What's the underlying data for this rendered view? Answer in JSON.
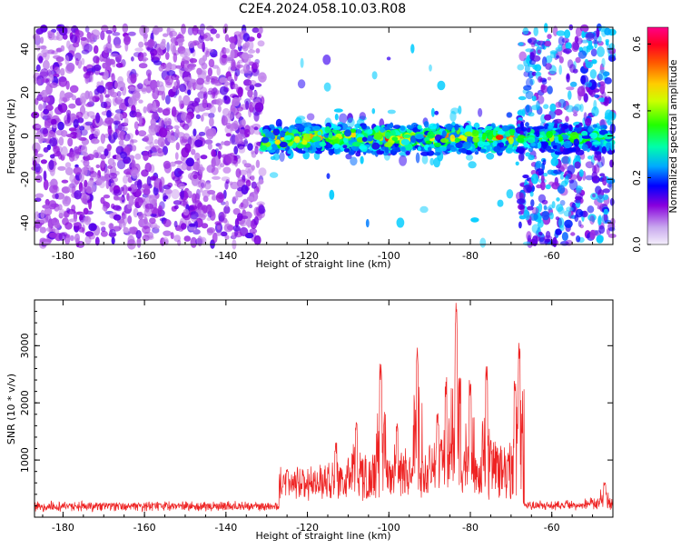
{
  "title": "C2E4.2024.058.10.03.R08",
  "chart_data": [
    {
      "type": "heatmap",
      "xlabel": "Height of straight line (km)",
      "ylabel": "Frequency (Hz)",
      "xlim": [
        -187,
        -45
      ],
      "ylim": [
        -50,
        50
      ],
      "x_ticks": [
        -180,
        -160,
        -140,
        -120,
        -100,
        -80,
        -60
      ],
      "y_ticks": [
        -40,
        -20,
        0,
        20,
        40
      ],
      "colorbar": {
        "label": "Normalized spectral amplitude",
        "range": [
          0.0,
          0.65
        ],
        "ticks": [
          0.0,
          0.2,
          0.4,
          0.6
        ],
        "colors": [
          "#e6dcf5",
          "#8800dd",
          "#0000ff",
          "#00ffff",
          "#00ff00",
          "#ffff00",
          "#ff0000",
          "#ff00aa"
        ]
      },
      "regions": [
        {
          "x": [
            -187,
            -131
          ],
          "content": "noise",
          "approx_amplitude": 0.05
        },
        {
          "x": [
            -131,
            -68
          ],
          "content": "signal band",
          "band_center_hz": 0,
          "band_halfwidth_hz": 5,
          "approx_amplitude": 0.3
        },
        {
          "x": [
            -68,
            -45
          ],
          "content": "noise + signal band",
          "approx_amplitude": 0.15
        }
      ],
      "grid": false
    },
    {
      "type": "line",
      "xlabel": "Height of straight line (km)",
      "ylabel": "SNR (10 * v/v)",
      "xlim": [
        -187,
        -45
      ],
      "ylim": [
        0,
        3800
      ],
      "x_ticks": [
        -180,
        -160,
        -140,
        -120,
        -100,
        -80,
        -60
      ],
      "y_ticks": [
        1000,
        2000,
        3000
      ],
      "series_color": "#ee2222",
      "peaks": [
        {
          "x": -125,
          "y": 850
        },
        {
          "x": -113,
          "y": 1300
        },
        {
          "x": -108,
          "y": 1750
        },
        {
          "x": -102,
          "y": 2800
        },
        {
          "x": -98,
          "y": 1750
        },
        {
          "x": -93,
          "y": 3050
        },
        {
          "x": -88,
          "y": 1850
        },
        {
          "x": -86,
          "y": 2450
        },
        {
          "x": -83.5,
          "y": 3750
        },
        {
          "x": -80,
          "y": 2400
        },
        {
          "x": -76,
          "y": 2700
        },
        {
          "x": -69,
          "y": 2400
        },
        {
          "x": -68,
          "y": 3100
        },
        {
          "x": -47,
          "y": 650
        }
      ],
      "grid": false
    }
  ]
}
